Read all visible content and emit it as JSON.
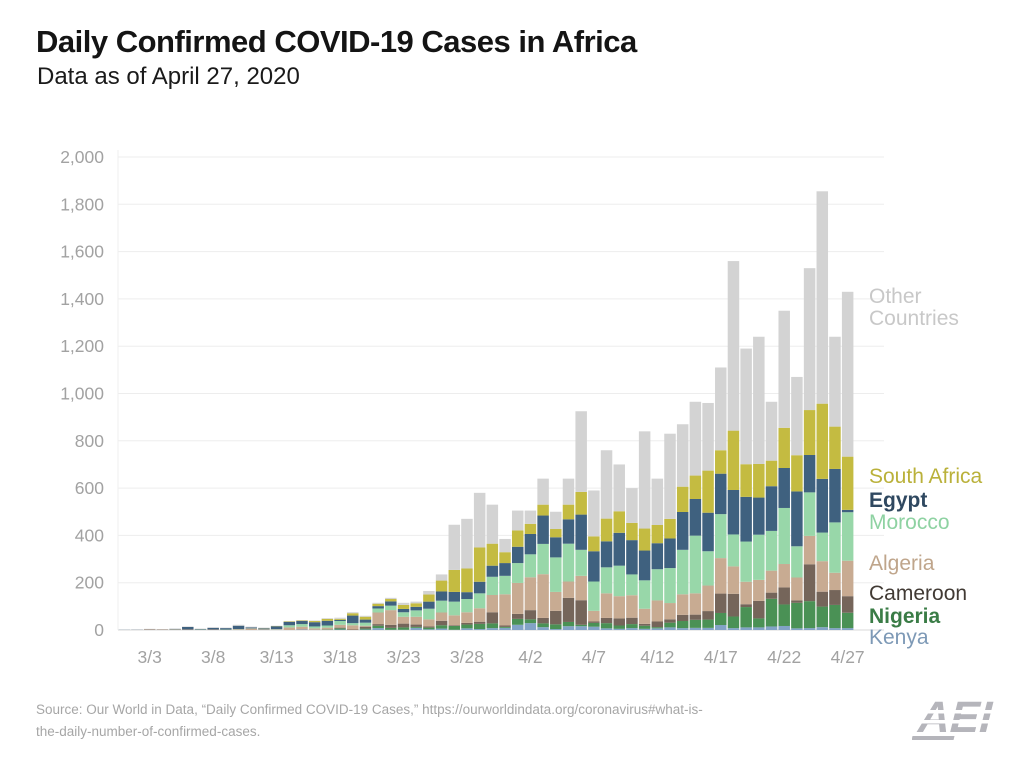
{
  "header": {
    "title": "Daily Confirmed COVID-19 Cases in Africa",
    "subtitle": "Data as of April 27, 2020"
  },
  "source": {
    "line1": "Source: Our World in Data, “Daily Confirmed COVID-19 Cases,” https://ourworldindata.org/coronavirus#what-is-",
    "line2": "the-daily-number-of-confirmed-cases."
  },
  "logo": {
    "text": "AEI",
    "color": "#b5b5bb"
  },
  "chart_data": {
    "type": "bar",
    "stacked": true,
    "title": "Daily Confirmed COVID-19 Cases in Africa",
    "xlabel": "",
    "ylabel": "",
    "ylim": [
      0,
      2000
    ],
    "ytick_interval": 200,
    "grid": true,
    "legend_position": "right",
    "axis_text_color": "#a2a2a2",
    "grid_color": "#ededed",
    "baseline_color": "#d8d8d8",
    "x": [
      "3/1",
      "3/2",
      "3/3",
      "3/4",
      "3/5",
      "3/6",
      "3/7",
      "3/8",
      "3/9",
      "3/10",
      "3/11",
      "3/12",
      "3/13",
      "3/14",
      "3/15",
      "3/16",
      "3/17",
      "3/18",
      "3/19",
      "3/20",
      "3/21",
      "3/22",
      "3/23",
      "3/24",
      "3/25",
      "3/26",
      "3/27",
      "3/28",
      "3/29",
      "3/30",
      "3/31",
      "4/1",
      "4/2",
      "4/3",
      "4/4",
      "4/5",
      "4/6",
      "4/7",
      "4/8",
      "4/9",
      "4/10",
      "4/11",
      "4/12",
      "4/13",
      "4/14",
      "4/15",
      "4/16",
      "4/17",
      "4/18",
      "4/19",
      "4/20",
      "4/21",
      "4/22",
      "4/23",
      "4/24",
      "4/25",
      "4/26",
      "4/27"
    ],
    "x_ticks": [
      2,
      7,
      12,
      17,
      22,
      27,
      32,
      37,
      42,
      47,
      52,
      57
    ],
    "series": [
      {
        "name": "Kenya",
        "color": "#82a3c6",
        "label_color": "#7d99b6",
        "values": [
          0,
          0,
          0,
          0,
          0,
          0,
          0,
          0,
          0,
          0,
          0,
          0,
          1,
          0,
          2,
          1,
          1,
          2,
          0,
          2,
          8,
          1,
          1,
          9,
          3,
          6,
          1,
          7,
          4,
          8,
          9,
          22,
          29,
          12,
          4,
          16,
          16,
          14,
          7,
          5,
          8,
          5,
          7,
          11,
          8,
          9,
          9,
          21,
          8,
          11,
          11,
          15,
          17,
          7,
          8,
          12,
          8,
          8
        ]
      },
      {
        "name": "Nigeria",
        "color": "#4a9155",
        "label_color": "#3a7c46",
        "values": [
          0,
          0,
          0,
          0,
          0,
          0,
          0,
          0,
          0,
          0,
          0,
          0,
          0,
          0,
          0,
          0,
          1,
          5,
          0,
          4,
          10,
          8,
          10,
          4,
          7,
          14,
          16,
          16,
          22,
          20,
          4,
          25,
          16,
          16,
          20,
          18,
          6,
          16,
          22,
          14,
          17,
          13,
          5,
          20,
          30,
          34,
          35,
          51,
          49,
          86,
          38,
          117,
          91,
          108,
          114,
          87,
          98,
          65
        ]
      },
      {
        "name": "Cameroon",
        "color": "#75655a",
        "label_color": "#413a34",
        "values": [
          0,
          0,
          0,
          0,
          0,
          0,
          0,
          0,
          0,
          0,
          0,
          0,
          0,
          0,
          0,
          0,
          0,
          3,
          2,
          8,
          7,
          13,
          16,
          10,
          5,
          19,
          3,
          7,
          9,
          47,
          6,
          21,
          39,
          23,
          57,
          102,
          104,
          6,
          22,
          30,
          27,
          8,
          24,
          14,
          26,
          22,
          36,
          82,
          96,
          12,
          74,
          26,
          72,
          10,
          156,
          63,
          63,
          70
        ]
      },
      {
        "name": "Algeria",
        "color": "#c8ab92",
        "label_color": "#bfa58b",
        "values": [
          0,
          0,
          3,
          2,
          2,
          2,
          1,
          2,
          1,
          3,
          6,
          2,
          2,
          11,
          12,
          6,
          8,
          12,
          18,
          4,
          49,
          62,
          29,
          33,
          30,
          35,
          42,
          45,
          57,
          73,
          132,
          131,
          139,
          185,
          80,
          69,
          103,
          45,
          104,
          94,
          95,
          64,
          89,
          69,
          87,
          90,
          108,
          150,
          116,
          95,
          89,
          93,
          99,
          97,
          120,
          129,
          73,
          150
        ]
      },
      {
        "name": "Morocco",
        "color": "#98d7a9",
        "label_color": "#8ed2a2",
        "values": [
          0,
          0,
          0,
          0,
          1,
          0,
          1,
          0,
          1,
          1,
          1,
          1,
          1,
          9,
          11,
          8,
          9,
          16,
          9,
          13,
          17,
          19,
          19,
          27,
          45,
          50,
          58,
          56,
          63,
          77,
          78,
          84,
          97,
          128,
          146,
          160,
          110,
          124,
          110,
          129,
          88,
          120,
          132,
          148,
          188,
          244,
          145,
          186,
          135,
          170,
          191,
          168,
          237,
          132,
          184,
          121,
          213,
          205
        ]
      },
      {
        "name": "Egypt",
        "color": "#3f617f",
        "label_color": "#2f4860",
        "values": [
          1,
          1,
          1,
          1,
          2,
          11,
          2,
          7,
          6,
          14,
          4,
          4,
          12,
          14,
          13,
          18,
          20,
          5,
          32,
          13,
          10,
          18,
          14,
          15,
          30,
          39,
          41,
          29,
          49,
          47,
          54,
          69,
          86,
          120,
          85,
          103,
          149,
          128,
          110,
          139,
          145,
          126,
          110,
          125,
          160,
          155,
          163,
          171,
          188,
          189,
          157,
          189,
          169,
          232,
          158,
          227,
          226,
          10
        ]
      },
      {
        "name": "South Africa",
        "color": "#c4bb41",
        "label_color": "#bab13a",
        "values": [
          0,
          0,
          0,
          0,
          0,
          0,
          0,
          0,
          0,
          0,
          0,
          1,
          1,
          2,
          2,
          5,
          8,
          4,
          10,
          12,
          10,
          10,
          17,
          15,
          30,
          46,
          93,
          100,
          145,
          93,
          46,
          69,
          43,
          46,
          35,
          62,
          96,
          63,
          96,
          91,
          73,
          93,
          77,
          83,
          107,
          99,
          178,
          99,
          251,
          138,
          142,
          108,
          170,
          153,
          190,
          318,
          179,
          225
        ]
      },
      {
        "name": "Other Countries",
        "color": "#d3d3d3",
        "label_color": "#c8c8c8",
        "values": [
          1,
          2,
          1,
          1,
          1,
          2,
          2,
          3,
          2,
          4,
          3,
          2,
          1,
          2,
          2,
          2,
          3,
          5,
          4,
          4,
          4,
          5,
          9,
          7,
          15,
          26,
          191,
          210,
          231,
          165,
          56,
          84,
          56,
          110,
          73,
          110,
          341,
          194,
          289,
          198,
          147,
          411,
          196,
          360,
          264,
          312,
          286,
          350,
          717,
          489,
          538,
          249,
          495,
          331,
          600,
          898,
          380,
          697
        ]
      }
    ]
  }
}
